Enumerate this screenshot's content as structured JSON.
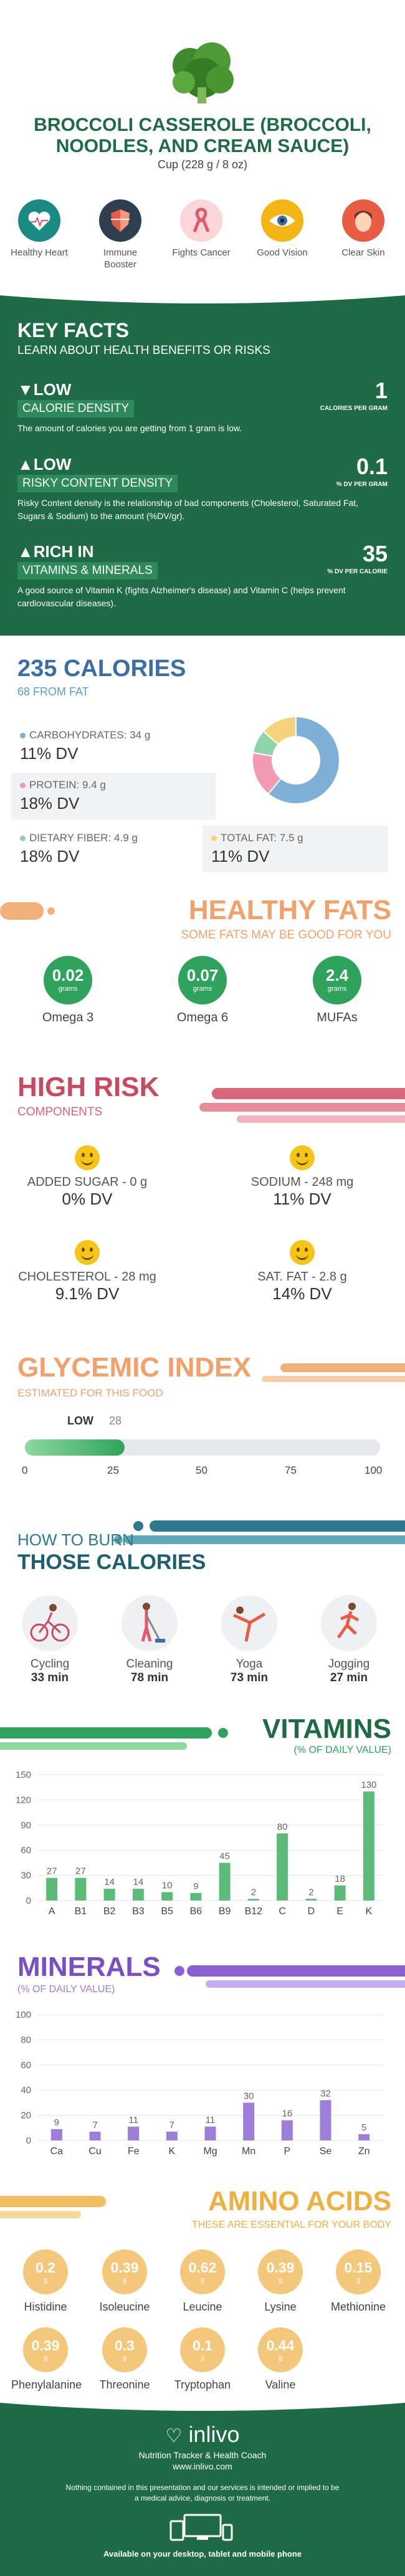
{
  "header": {
    "title": "BROCCOLI CASSEROLE (BROCCOLI, NOODLES, AND CREAM SAUCE)",
    "serving": "Cup (228 g / 8 oz)",
    "benefits": [
      {
        "label": "Healthy Heart",
        "icon": "heart-icon",
        "color": "#1a8a82"
      },
      {
        "label": "Immune Booster",
        "icon": "shield-icon",
        "color": "#2e3f50"
      },
      {
        "label": "Fights Cancer",
        "icon": "ribbon-icon",
        "color": "#e0596b"
      },
      {
        "label": "Good Vision",
        "icon": "eye-icon",
        "color": "#f3b415"
      },
      {
        "label": "Clear Skin",
        "icon": "face-icon",
        "color": "#e85c44"
      }
    ]
  },
  "key_facts": {
    "title": "KEY FACTS",
    "subtitle": "LEARN ABOUT HEALTH BENEFITS OR RISKS",
    "facts": [
      {
        "level": "LOW",
        "tag": "CALORIE DENSITY",
        "value": "1",
        "unit": "CALORIES PER GRAM",
        "desc": "The amount of calories you are getting from 1 gram is low."
      },
      {
        "level": "LOW",
        "tag": "RISKY CONTENT DENSITY",
        "value": "0.1",
        "unit": "% DV PER GRAM",
        "desc": "Risky Content density is the relationship of bad components (Cholesterol, Saturated Fat, Sugars & Sodium) to the amount (%DV/gr)."
      },
      {
        "level": "RICH IN",
        "tag": "VITAMINS & MINERALS",
        "value": "35",
        "unit": "% DV PER CALORIE",
        "desc": "A good source of Vitamin K (fights Alzheimer's disease) and Vitamin C (helps prevent cardiovascular diseases)."
      }
    ]
  },
  "calories": {
    "title": "235 CALORIES",
    "subtitle": "68 FROM FAT",
    "macros": [
      {
        "name": "CARBOHYDRATES: 34 g",
        "dv": "11% DV",
        "color": "#7fb0d8"
      },
      {
        "name": "PROTEIN: 9.4 g",
        "dv": "18% DV",
        "color": "#f29ab6"
      },
      {
        "name": "DIETARY FIBER: 4.9 g",
        "dv": "18% DV",
        "color": "#8fd4a8"
      },
      {
        "name": "TOTAL FAT: 7.5 g",
        "dv": "11% DV",
        "color": "#f6d27a"
      }
    ]
  },
  "healthy_fats": {
    "title": "HEALTHY FATS",
    "subtitle": "SOME FATS MAY BE GOOD FOR YOU",
    "items": [
      {
        "value": "0.02",
        "unit": "grams",
        "label": "Omega 3"
      },
      {
        "value": "0.07",
        "unit": "grams",
        "label": "Omega 6"
      },
      {
        "value": "2.4",
        "unit": "grams",
        "label": "MUFAs"
      }
    ]
  },
  "high_risk": {
    "title": "HIGH RISK",
    "subtitle": "COMPONENTS",
    "items": [
      {
        "name": "ADDED SUGAR - 0 g",
        "dv": "0% DV"
      },
      {
        "name": "SODIUM - 248 mg",
        "dv": "11% DV"
      },
      {
        "name": "CHOLESTEROL - 28 mg",
        "dv": "9.1% DV"
      },
      {
        "name": "SAT. FAT - 2.8 g",
        "dv": "14% DV"
      }
    ]
  },
  "glycemic": {
    "title": "GLYCEMIC INDEX",
    "subtitle": "ESTIMATED FOR THIS FOOD",
    "level": "LOW",
    "value": "28",
    "value_num": 28,
    "ticks": [
      "0",
      "25",
      "50",
      "75",
      "100"
    ]
  },
  "burn": {
    "title_top": "HOW TO BURN",
    "title_bottom": "THOSE CALORIES",
    "items": [
      {
        "name": "Cycling",
        "minutes": "33 min",
        "icon": "cycling-icon"
      },
      {
        "name": "Cleaning",
        "minutes": "78 min",
        "icon": "cleaning-icon"
      },
      {
        "name": "Yoga",
        "minutes": "73 min",
        "icon": "yoga-icon"
      },
      {
        "name": "Jogging",
        "minutes": "27 min",
        "icon": "jogging-icon"
      }
    ]
  },
  "vitamins": {
    "title": "VITAMINS",
    "subtitle": "(% OF DAILY VALUE)"
  },
  "minerals": {
    "title": "MINERALS",
    "subtitle": "(% OF DAILY VALUE)"
  },
  "amino": {
    "title": "AMINO ACIDS",
    "subtitle": "THESE ARE ESSENTIAL FOR YOUR BODY",
    "items": [
      {
        "value": "0.2",
        "unit": "g",
        "name": "Histidine"
      },
      {
        "value": "0.39",
        "unit": "g",
        "name": "Isoleucine"
      },
      {
        "value": "0.62",
        "unit": "g",
        "name": "Leucine"
      },
      {
        "value": "0.39",
        "unit": "g",
        "name": "Lysine"
      },
      {
        "value": "0.15",
        "unit": "g",
        "name": "Methionine"
      },
      {
        "value": "0.39",
        "unit": "g",
        "name": "Phenylalanine"
      },
      {
        "value": "0.3",
        "unit": "g",
        "name": "Threonine"
      },
      {
        "value": "0.1",
        "unit": "g",
        "name": "Tryptophan"
      },
      {
        "value": "0.44",
        "unit": "g",
        "name": "Valine"
      }
    ]
  },
  "footer": {
    "brand": "inlivo",
    "tagline": "Nutrition Tracker & Health Coach",
    "url": "www.inlivo.com",
    "disclaimer": "Nothing contained in this presentation and our services is intended or implied to be a medical advice, diagnosis or treatment.",
    "available": "Available on your desktop, tablet and mobile phone"
  },
  "chart_data": [
    {
      "type": "pie",
      "categories": [
        "Carbohydrates",
        "Protein",
        "Dietary Fiber",
        "Total Fat"
      ],
      "values": [
        34,
        9.4,
        4.9,
        7.5
      ],
      "colors": [
        "#7fb0d8",
        "#f29ab6",
        "#8fd4a8",
        "#f6d27a"
      ]
    },
    {
      "type": "bar",
      "title": "VITAMINS",
      "categories": [
        "A",
        "B1",
        "B2",
        "B3",
        "B5",
        "B6",
        "B9",
        "B12",
        "C",
        "D",
        "E",
        "K"
      ],
      "values": [
        27,
        27,
        14,
        14,
        10,
        9,
        45,
        2,
        80,
        2,
        18,
        130
      ],
      "ylim": [
        0,
        150
      ],
      "yticks": [
        0,
        30,
        60,
        90,
        120,
        150
      ],
      "color": "#5dbb7a"
    },
    {
      "type": "bar",
      "title": "MINERALS",
      "categories": [
        "Ca",
        "Cu",
        "Fe",
        "K",
        "Mg",
        "Mn",
        "P",
        "Se",
        "Zn"
      ],
      "values": [
        9,
        7,
        11,
        7,
        11,
        30,
        16,
        32,
        5
      ],
      "ylim": [
        0,
        100
      ],
      "yticks": [
        0,
        20,
        40,
        60,
        80,
        100
      ],
      "color": "#9b7fd8"
    }
  ]
}
